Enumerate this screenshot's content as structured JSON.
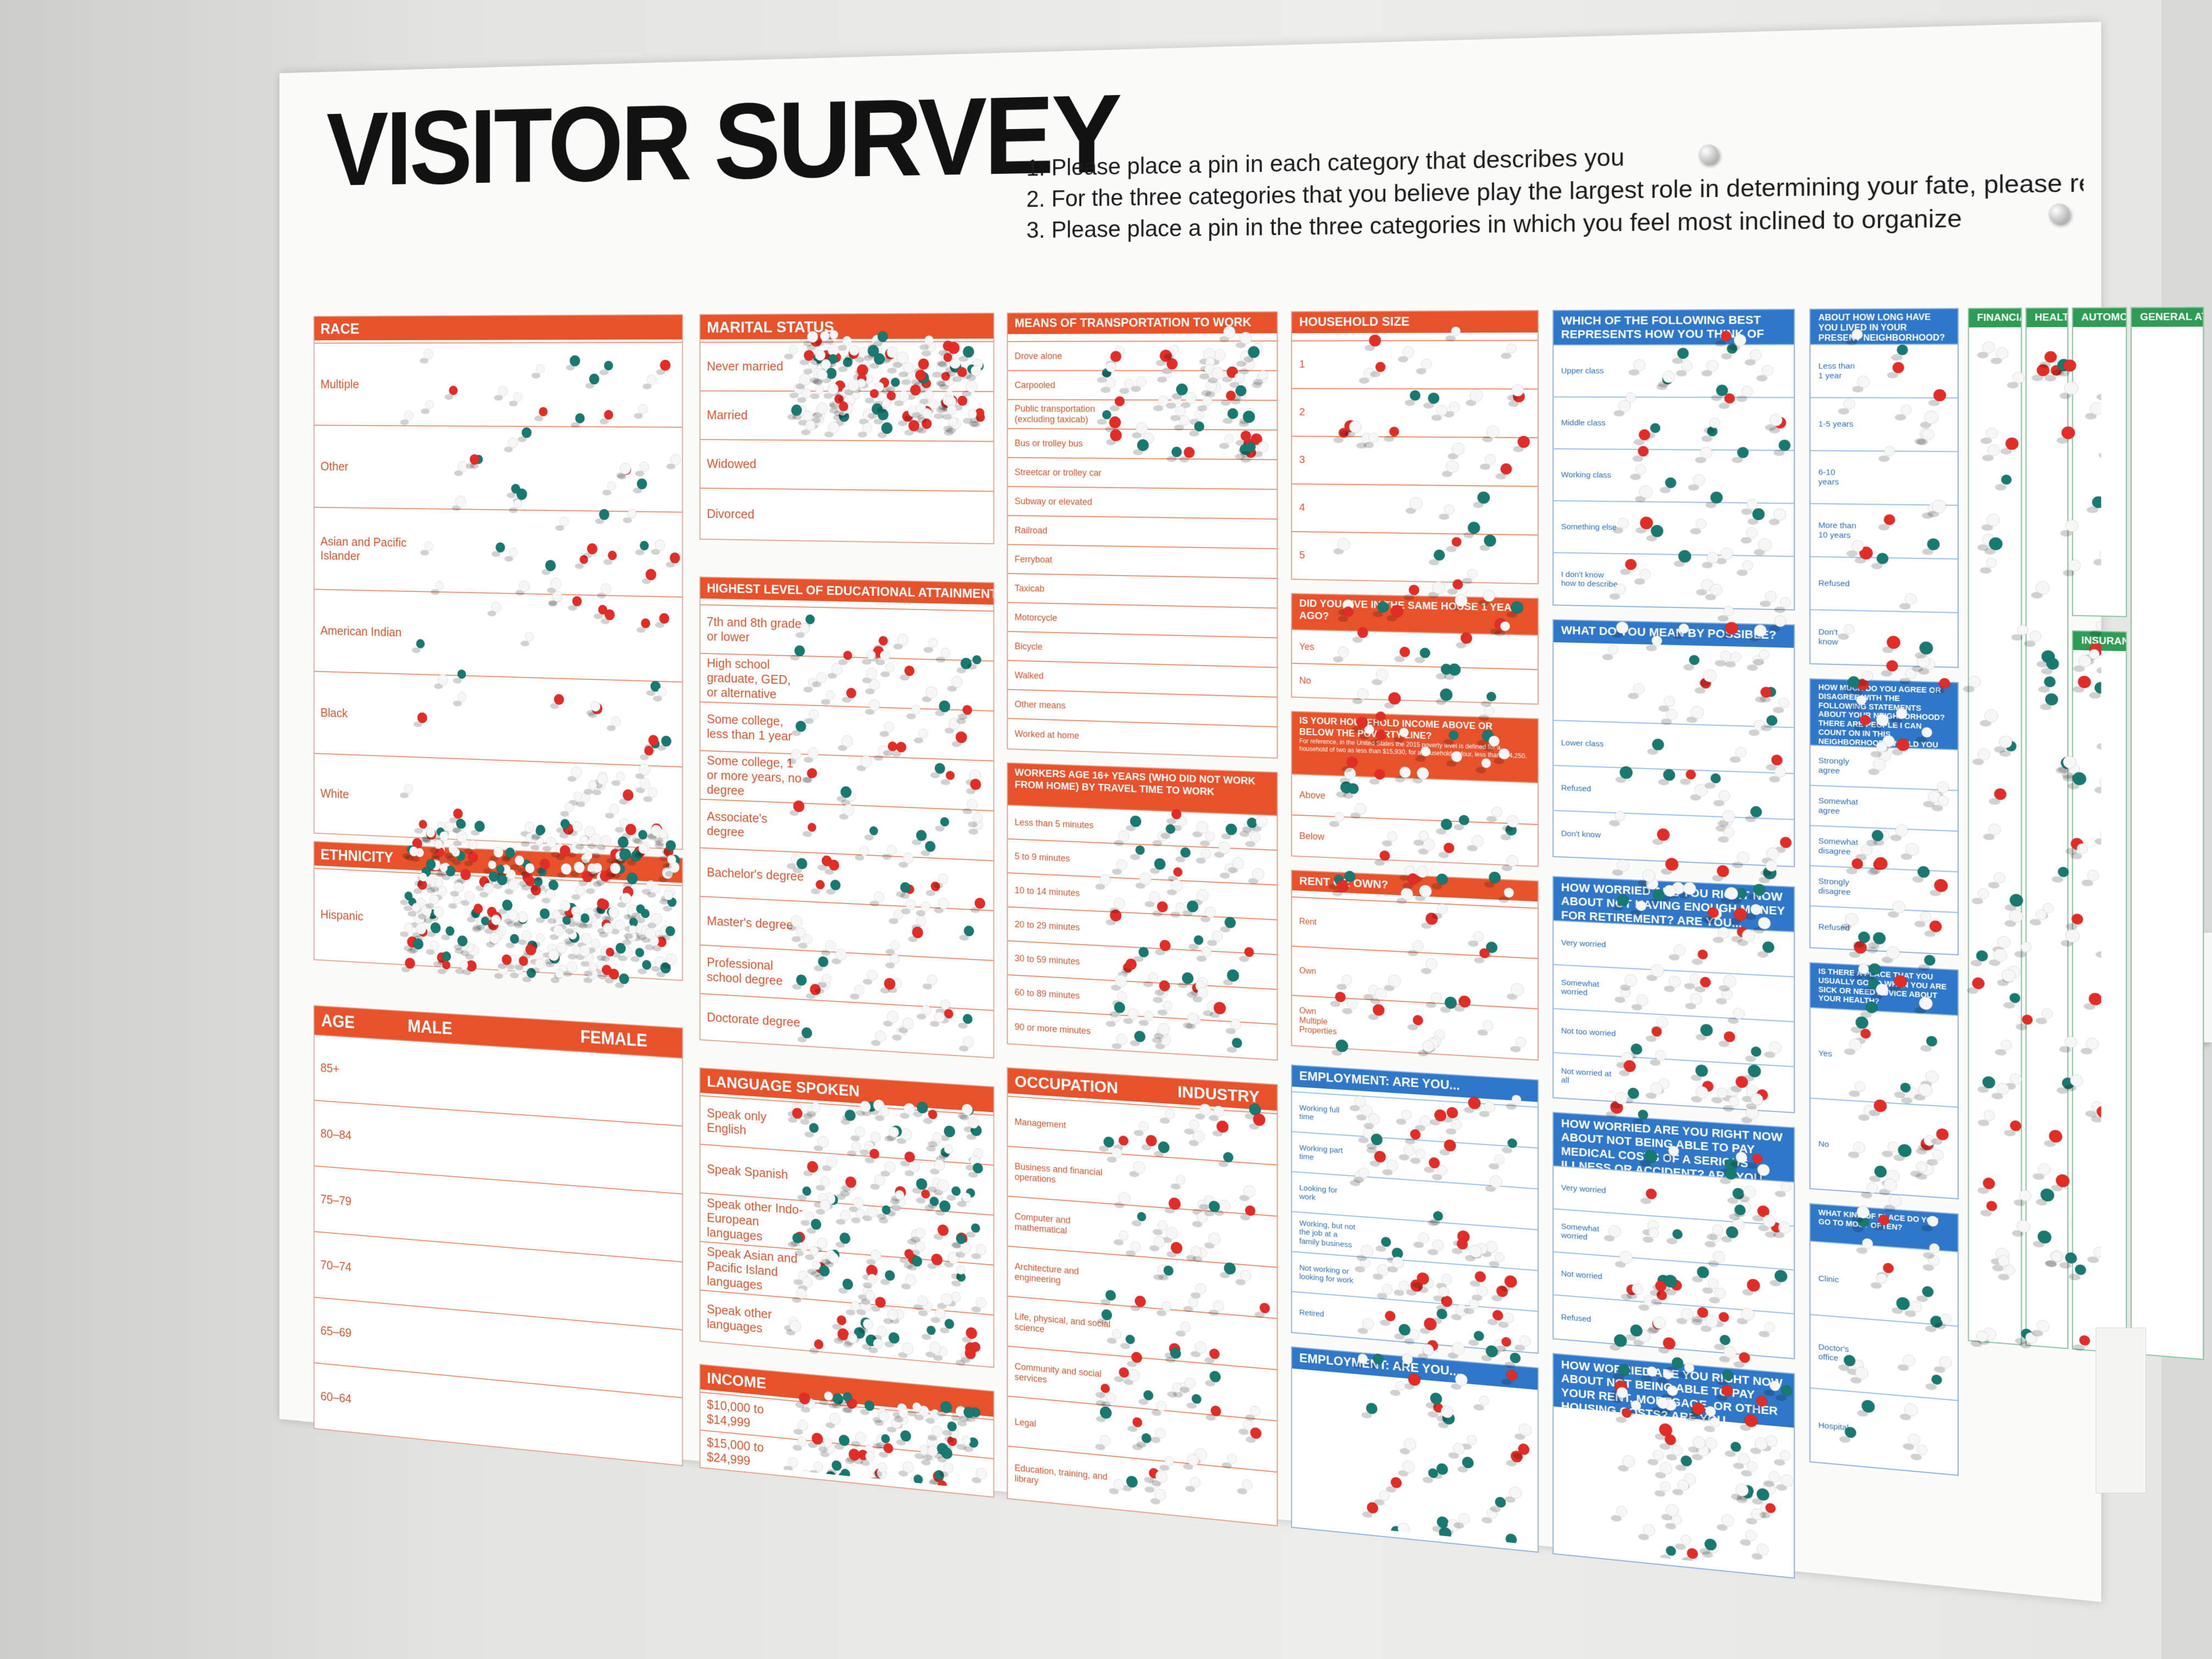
{
  "title": "VISITOR SURVEY",
  "instructions": [
    "1. Please place a   pin in each category that describes you",
    "2. For the three categories that you believe play the largest role in determining your fate, please replace your   pin with a   pin",
    "3. Please place a   pin in the three categories in which you feel most inclined to organize"
  ],
  "colors": {
    "header_orange": "#e8512a",
    "header_blue": "#2e77c9",
    "header_green": "#2f9c55",
    "pin_white": "#f7f7f7",
    "pin_teal": "#17796f",
    "pin_red": "#e32c25"
  },
  "panels": {
    "race": {
      "title": "RACE",
      "rows": [
        "Multiple",
        "Other",
        "Asian and Pacific Islander",
        "American Indian",
        "Black",
        "White"
      ]
    },
    "ethnicity": {
      "title": "ETHNICITY",
      "rows": [
        "Hispanic"
      ]
    },
    "age": {
      "title": "AGE",
      "male": "MALE",
      "female": "FEMALE",
      "rows": [
        "85+",
        "80–84",
        "75–79",
        "70–74",
        "65–69",
        "60–64"
      ]
    },
    "marital": {
      "title": "MARITAL STATUS",
      "rows": [
        "Never married",
        "Married",
        "Widowed",
        "Divorced"
      ]
    },
    "education": {
      "title": "HIGHEST LEVEL OF EDUCATIONAL ATTAINMENT",
      "rows": [
        "7th and 8th grade or lower",
        "High school graduate, GED, or alternative",
        "Some college, less than 1 year",
        "Some college, 1 or more years, no degree",
        "Associate's degree",
        "Bachelor's degree",
        "Master's degree",
        "Professional school degree",
        "Doctorate degree"
      ]
    },
    "language": {
      "title": "LANGUAGE SPOKEN",
      "rows": [
        "Speak only English",
        "Speak Spanish",
        "Speak other Indo-European languages",
        "Speak Asian and Pacific Island languages",
        "Speak other languages"
      ]
    },
    "income": {
      "title": "INCOME",
      "rows": [
        "$10,000 to $14,999",
        "$15,000 to $24,999"
      ]
    },
    "transport": {
      "title": "MEANS OF TRANSPORTATION TO WORK",
      "rows": [
        "Drove alone",
        "Carpooled",
        "Public transportation (excluding taxicab)",
        "Bus or trolley bus",
        "Streetcar or trolley car",
        "Subway or elevated",
        "Railroad",
        "Ferryboat",
        "Taxicab",
        "Motorcycle",
        "Bicycle",
        "Walked",
        "Other means",
        "Worked at home"
      ]
    },
    "travel": {
      "title": "WORKERS AGE 16+ YEARS (WHO DID NOT WORK FROM HOME) BY TRAVEL TIME TO WORK",
      "rows": [
        "Less than 5 minutes",
        "5 to 9 minutes",
        "10 to 14 minutes",
        "20 to 29 minutes",
        "30 to 59 minutes",
        "60 to 89 minutes",
        "90 or more minutes"
      ]
    },
    "occupation": {
      "title": "OCCUPATION",
      "industry": "INDUSTRY",
      "rows": [
        "Management",
        "Business and financial operations",
        "Computer and mathematical",
        "Architecture and engineering",
        "Life, physical, and social science",
        "Community and social services",
        "Legal",
        "Education, training, and library"
      ]
    },
    "household": {
      "title": "HOUSEHOLD SIZE",
      "rows": [
        "1",
        "2",
        "3",
        "4",
        "5"
      ]
    },
    "samehouse": {
      "title": "DID YOU LIVE IN THE SAME HOUSE 1 YEAR AGO?",
      "rows": [
        "Yes",
        "No"
      ]
    },
    "poverty": {
      "title": "IS YOUR HOUSEHOLD INCOME ABOVE OR BELOW THE POVERTY LINE?",
      "note": "For reference, in the United States the 2015 poverty level is defined for a household of two as less than $15,930, for a household of four, less than $24,250.",
      "rows": [
        "Above",
        "Below"
      ]
    },
    "rent": {
      "title": "RENT OR OWN?",
      "rows": [
        "Rent",
        "Own",
        "Own Multiple Properties"
      ]
    },
    "employment": {
      "title": "EMPLOYMENT: ARE YOU...",
      "rows": [
        "Working full time",
        "Working part time",
        "Looking for work",
        "Working, but not the job at a family business",
        "Not working or looking for work",
        "Retired"
      ]
    },
    "employment2": {
      "title": "EMPLOYMENT: ARE YOU..."
    },
    "think": {
      "title": "WHICH OF THE FOLLOWING BEST REPRESENTS HOW YOU THINK OF YOURSELF?",
      "rows": [
        "Upper class",
        "Middle class",
        "Working class",
        "Something else",
        "I don't know how to describe"
      ]
    },
    "meaning": {
      "title": "WHAT DO YOU MEAN BY POSSIBLE?",
      "rows": [
        "Lower class",
        "Refused",
        "Don't know"
      ]
    },
    "worried1": {
      "title": "HOW WORRIED ARE YOU RIGHT NOW ABOUT NOT HAVING ENOUGH MONEY FOR RETIREMENT? ARE YOU...",
      "rows": [
        "Very worried",
        "Somewhat worried",
        "Not too worried",
        "Not worried at all"
      ]
    },
    "worried2": {
      "title": "HOW WORRIED ARE YOU RIGHT NOW ABOUT NOT BEING ABLE TO PAY MEDICAL COSTS OF A SERIOUS ILLNESS OR ACCIDENT? ARE YOU...",
      "rows": [
        "Very worried",
        "Somewhat worried",
        "Not worried",
        "Refused"
      ]
    },
    "worried3": {
      "title": "HOW WORRIED ARE YOU RIGHT NOW ABOUT NOT BEING ABLE TO PAY YOUR RENT, MORTGAGE, OR OTHER HOUSING COSTS? ARE YOU..."
    },
    "lived": {
      "title": "ABOUT HOW LONG HAVE YOU LIVED IN YOUR PRESENT NEIGHBORHOOD?",
      "rows": [
        "Less than 1 year",
        "1-5 years",
        "6-10 years",
        "More than 10 years",
        "Refused",
        "Don't know"
      ]
    },
    "agree": {
      "title": "HOW MUCH DO YOU AGREE OR DISAGREE WITH THE FOLLOWING STATEMENTS ABOUT YOUR NEIGHBORHOOD? THERE ARE PEOPLE I CAN COUNT ON IN THIS NEIGHBORHOOD. WOULD YOU SAY...",
      "rows": [
        "Strongly agree",
        "Somewhat agree",
        "Somewhat disagree",
        "Strongly disagree",
        "Refused"
      ]
    },
    "place": {
      "title": "IS THERE A PLACE THAT YOU USUALLY GO TO WHEN YOU ARE SICK OR NEED ADVICE ABOUT YOUR HEALTH?",
      "rows": [
        "Yes",
        "No"
      ]
    },
    "kind": {
      "title": "WHAT KIND OF PLACE DO YOU GO TO MOST OFTEN?",
      "rows": [
        "Clinic",
        "Doctor's office",
        "Hospital"
      ]
    },
    "financial": {
      "title": "FINANCIAL"
    },
    "health": {
      "title": "HEALTH"
    },
    "automobile": {
      "title": "AUTOMOBILE"
    },
    "general": {
      "title": "GENERAL ATTITUDES"
    },
    "insurance": {
      "title": "INSURANCE"
    }
  }
}
